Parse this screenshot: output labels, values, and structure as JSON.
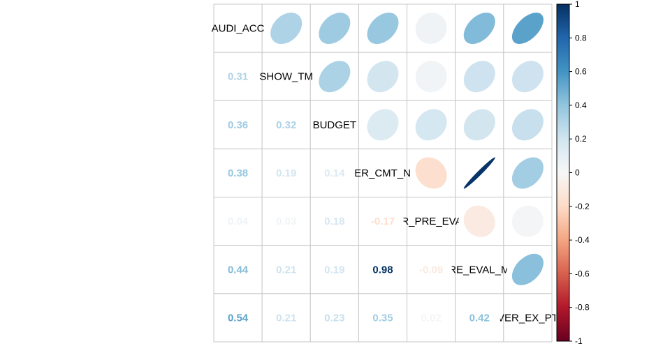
{
  "chart_data": {
    "type": "heatmap",
    "style": "correlation-matrix, upper triangle ellipses, lower triangle numbers",
    "variables": [
      "AUDI_ACC",
      "SHOW_TM",
      "BUDGET",
      "VER_CMT_NN",
      "ER_PRE_EVAL",
      "_PRE_EVAL_MUL",
      "VER_EX_PT"
    ],
    "matrix": [
      [
        1.0,
        0.31,
        0.36,
        0.38,
        0.04,
        0.44,
        0.54
      ],
      [
        0.31,
        1.0,
        0.32,
        0.19,
        0.03,
        0.21,
        0.21
      ],
      [
        0.36,
        0.32,
        1.0,
        0.14,
        0.18,
        0.19,
        0.23
      ],
      [
        0.38,
        0.19,
        0.14,
        1.0,
        -0.17,
        0.98,
        0.35
      ],
      [
        0.04,
        0.03,
        0.18,
        -0.17,
        1.0,
        -0.09,
        0.02
      ],
      [
        0.44,
        0.21,
        0.19,
        0.98,
        -0.09,
        1.0,
        0.42
      ],
      [
        0.54,
        0.21,
        0.23,
        0.35,
        0.02,
        0.42,
        1.0
      ]
    ],
    "lower_labels": [
      [
        null,
        null,
        null,
        null,
        null,
        null,
        null
      ],
      [
        "0.31",
        null,
        null,
        null,
        null,
        null,
        null
      ],
      [
        "0.36",
        "0.32",
        null,
        null,
        null,
        null,
        null
      ],
      [
        "0.38",
        "0.19",
        "0.14",
        null,
        null,
        null,
        null
      ],
      [
        "0.04",
        "0.03",
        "0.18",
        "-0.17",
        null,
        null,
        null
      ],
      [
        "0.44",
        "0.21",
        "0.19",
        "0.98",
        "-0.09",
        null,
        null
      ],
      [
        "0.54",
        "0.21",
        "0.23",
        "0.35",
        "0.02",
        "0.42",
        null
      ]
    ],
    "colorbar": {
      "range": [
        -1,
        1
      ],
      "ticks": [
        "1",
        "0.8",
        "0.6",
        "0.4",
        "0.2",
        "0",
        "-0.2",
        "-0.4",
        "-0.6",
        "-0.8",
        "-1"
      ]
    },
    "colors": {
      "negative_end": "#67001F",
      "neutral": "#F7F7F7",
      "positive_end": "#053061",
      "grid": "#C8C8C8"
    }
  }
}
